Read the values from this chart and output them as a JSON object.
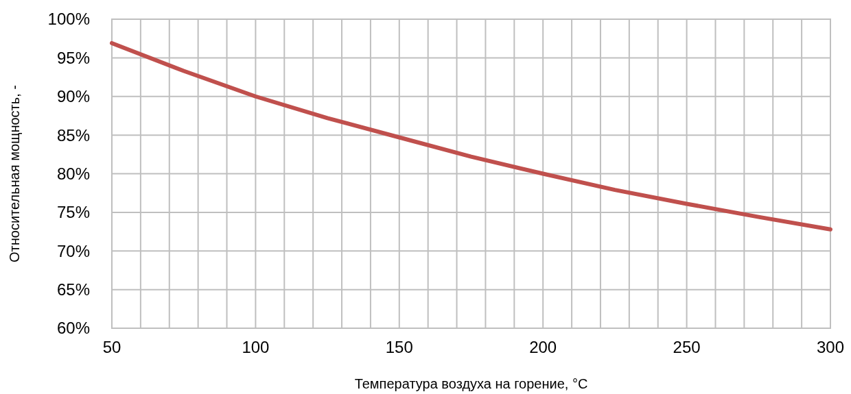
{
  "chart_data": {
    "type": "line",
    "xlabel": "Температура воздуха на горение, °C",
    "ylabel": "Относительная мощность, -",
    "x": [
      50,
      75,
      100,
      125,
      150,
      175,
      200,
      225,
      250,
      275,
      300
    ],
    "series": [
      {
        "color": "#c0504d",
        "values": [
          96.9,
          93.3,
          90.0,
          87.2,
          84.7,
          82.2,
          80.0,
          77.9,
          76.1,
          74.4,
          72.8
        ]
      }
    ],
    "xlim": [
      50,
      300
    ],
    "xticks": [
      50,
      {
        "value": 60,
        "label": null
      },
      {
        "value": 70,
        "label": null
      },
      {
        "value": 80,
        "label": null
      },
      {
        "value": 90,
        "label": null
      },
      100,
      {
        "value": 110,
        "label": null
      },
      {
        "value": 120,
        "label": null
      },
      {
        "value": 130,
        "label": null
      },
      {
        "value": 140,
        "label": null
      },
      150,
      {
        "value": 160,
        "label": null
      },
      {
        "value": 170,
        "label": null
      },
      {
        "value": 180,
        "label": null
      },
      {
        "value": 190,
        "label": null
      },
      200,
      {
        "value": 210,
        "label": null
      },
      {
        "value": 220,
        "label": null
      },
      {
        "value": 230,
        "label": null
      },
      {
        "value": 240,
        "label": null
      },
      250,
      {
        "value": 260,
        "label": null
      },
      {
        "value": 270,
        "label": null
      },
      {
        "value": 280,
        "label": null
      },
      {
        "value": 290,
        "label": null
      },
      300
    ],
    "ylim": [
      60,
      100
    ],
    "yticks": [
      {
        "value": 60,
        "label": "60%"
      },
      {
        "value": 65,
        "label": "65%"
      },
      {
        "value": 70,
        "label": "70%"
      },
      {
        "value": 75,
        "label": "75%"
      },
      {
        "value": 80,
        "label": "80%"
      },
      {
        "value": 85,
        "label": "85%"
      },
      {
        "value": 90,
        "label": "90%"
      },
      {
        "value": 95,
        "label": "95%"
      },
      {
        "value": 100,
        "label": "100%"
      }
    ],
    "grid": true,
    "line_style": "solid",
    "marker": "none"
  }
}
